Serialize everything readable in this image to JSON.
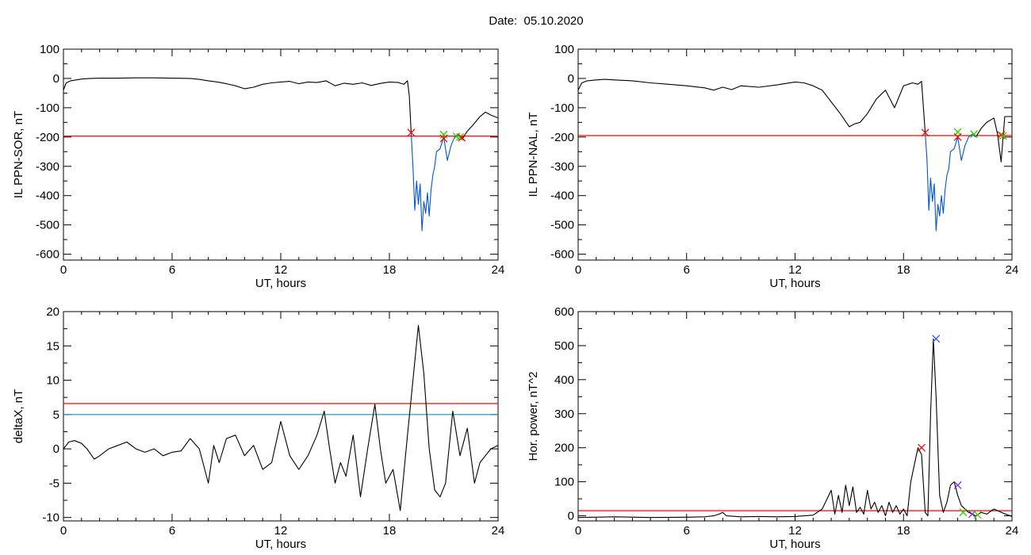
{
  "header": {
    "title": "Date:  05.10.2020"
  },
  "colors": {
    "threshold": "#ff0000",
    "threshold2": "#1e8fb4",
    "highlight": "#0055cc",
    "marker_red": "#ff0000",
    "marker_green": "#33cc00",
    "marker_blue": "#2255ff",
    "marker_purple": "#7733cc"
  },
  "chart_data": [
    {
      "type": "line",
      "xlabel": "UT, hours",
      "ylabel": "IL PPN-SOR, nT",
      "xlim": [
        0,
        24
      ],
      "ylim": [
        -620,
        100
      ],
      "xticks": [
        0,
        6,
        12,
        18,
        24
      ],
      "yticks": [
        -600,
        -500,
        -400,
        -300,
        -200,
        -100,
        0,
        100
      ],
      "threshold": {
        "y": -197,
        "color": "#ff0000"
      },
      "series": [
        {
          "color": "#000000",
          "x": [
            0,
            0.15,
            0.4,
            0.7,
            1.0,
            1.5,
            2,
            3,
            4,
            5,
            6,
            7,
            7.5,
            8,
            8.5,
            9,
            9.5,
            10,
            10.5,
            11,
            11.5,
            12,
            12.5,
            13,
            13.5,
            14,
            14.5,
            15,
            15.5,
            16,
            16.5,
            17,
            17.5,
            18,
            18.5,
            18.8,
            19.0,
            19.1,
            19.2
          ],
          "y": [
            -40,
            -15,
            -8,
            -5,
            -2,
            0,
            1,
            1,
            2,
            2,
            1,
            0,
            -3,
            -8,
            -12,
            -18,
            -25,
            -35,
            -30,
            -20,
            -15,
            -12,
            -10,
            -18,
            -12,
            -14,
            -8,
            -25,
            -16,
            -20,
            -15,
            -24,
            -17,
            -12,
            -14,
            -20,
            -8,
            -60,
            -185
          ]
        },
        {
          "color": "#0055cc",
          "x": [
            19.2,
            19.3,
            19.4,
            19.5,
            19.6,
            19.7,
            19.8,
            19.9,
            20.0,
            20.1,
            20.2,
            20.3,
            20.4,
            20.5,
            20.6,
            20.8,
            21.0,
            21.2,
            21.4,
            21.6,
            21.8,
            22.0
          ],
          "y": [
            -185,
            -300,
            -450,
            -350,
            -430,
            -360,
            -520,
            -420,
            -460,
            -390,
            -470,
            -380,
            -330,
            -300,
            -250,
            -240,
            -200,
            -280,
            -230,
            -200,
            -190,
            -210
          ]
        },
        {
          "color": "#000000",
          "x": [
            22.0,
            22.3,
            22.6,
            23.0,
            23.3,
            23.6,
            24.0
          ],
          "y": [
            -210,
            -180,
            -160,
            -130,
            -115,
            -125,
            -135
          ]
        }
      ],
      "markers": [
        {
          "x": 19.2,
          "y": -185,
          "color": "#ff0000"
        },
        {
          "x": 21.0,
          "y": -192,
          "color": "#33cc00"
        },
        {
          "x": 21.0,
          "y": -205,
          "color": "#ff0000"
        },
        {
          "x": 21.7,
          "y": -198,
          "color": "#33cc00"
        },
        {
          "x": 21.9,
          "y": -200,
          "color": "#33cc00"
        },
        {
          "x": 22.0,
          "y": -202,
          "color": "#ff0000"
        }
      ]
    },
    {
      "type": "line",
      "xlabel": "UT, hours",
      "ylabel": "IL PPN-NAL, nT",
      "xlim": [
        0,
        24
      ],
      "ylim": [
        -620,
        100
      ],
      "xticks": [
        0,
        6,
        12,
        18,
        24
      ],
      "yticks": [
        -600,
        -500,
        -400,
        -300,
        -200,
        -100,
        0,
        100
      ],
      "threshold": {
        "y": -195,
        "color": "#ff0000"
      },
      "series": [
        {
          "color": "#000000",
          "x": [
            0,
            0.2,
            0.5,
            1,
            1.5,
            2,
            3,
            4,
            5,
            6,
            7,
            7.5,
            8,
            8.5,
            9,
            10,
            11,
            12,
            12.5,
            13,
            13.5,
            14,
            14.5,
            15,
            15.3,
            15.6,
            16,
            16.5,
            17,
            17.5,
            18,
            18.5,
            18.8,
            19.0,
            19.2
          ],
          "y": [
            -40,
            -15,
            -8,
            -5,
            -3,
            -5,
            -8,
            -15,
            -20,
            -25,
            -32,
            -40,
            -30,
            -38,
            -25,
            -30,
            -22,
            -12,
            -15,
            -25,
            -40,
            -80,
            -120,
            -165,
            -155,
            -150,
            -120,
            -70,
            -40,
            -100,
            -25,
            -15,
            -20,
            -10,
            -185
          ]
        },
        {
          "color": "#0055cc",
          "x": [
            19.2,
            19.3,
            19.4,
            19.5,
            19.6,
            19.7,
            19.8,
            19.9,
            20.0,
            20.1,
            20.2,
            20.3,
            20.4,
            20.5,
            20.6,
            20.8,
            21.0,
            21.2,
            21.4,
            21.6,
            21.8,
            22.0
          ],
          "y": [
            -185,
            -280,
            -450,
            -340,
            -420,
            -360,
            -520,
            -430,
            -470,
            -400,
            -460,
            -380,
            -330,
            -310,
            -250,
            -240,
            -200,
            -280,
            -230,
            -200,
            -190,
            -200
          ]
        },
        {
          "color": "#000000",
          "x": [
            22.0,
            22.3,
            22.6,
            23.0,
            23.2,
            23.4,
            23.6,
            24.0
          ],
          "y": [
            -200,
            -170,
            -150,
            -135,
            -190,
            -285,
            -130,
            -130
          ]
        }
      ],
      "markers": [
        {
          "x": 19.2,
          "y": -185,
          "color": "#ff0000"
        },
        {
          "x": 21.0,
          "y": -183,
          "color": "#33cc00"
        },
        {
          "x": 21.0,
          "y": -200,
          "color": "#ff0000"
        },
        {
          "x": 21.9,
          "y": -190,
          "color": "#33cc00"
        },
        {
          "x": 23.4,
          "y": -193,
          "color": "#ff0000"
        },
        {
          "x": 23.5,
          "y": -196,
          "color": "#33cc00"
        }
      ]
    },
    {
      "type": "line",
      "xlabel": "UT, hours",
      "ylabel": "deltaX, nT",
      "xlim": [
        0,
        24
      ],
      "ylim": [
        -10.5,
        20
      ],
      "xticks": [
        0,
        6,
        12,
        18,
        24
      ],
      "yticks": [
        -10,
        -5,
        0,
        5,
        10,
        15,
        20
      ],
      "threshold": {
        "y": 6.6,
        "color": "#ff0000"
      },
      "threshold2": {
        "y": 5.0,
        "color": "#1e8fb4"
      },
      "series": [
        {
          "color": "#000000",
          "x": [
            0,
            0.3,
            0.6,
            1.0,
            1.3,
            1.7,
            2.0,
            2.5,
            3.0,
            3.5,
            4.0,
            4.5,
            5.0,
            5.5,
            6.0,
            6.5,
            7.0,
            7.5,
            8.0,
            8.3,
            8.6,
            9.0,
            9.5,
            10.0,
            10.5,
            11.0,
            11.5,
            12.0,
            12.5,
            13.0,
            13.5,
            14.0,
            14.4,
            14.7,
            15.0,
            15.3,
            15.6,
            16.0,
            16.4,
            16.8,
            17.2,
            17.5,
            17.8,
            18.2,
            18.6,
            19.0,
            19.3,
            19.6,
            19.9,
            20.2,
            20.5,
            20.8,
            21.1,
            21.5,
            21.9,
            22.3,
            22.7,
            23.0,
            23.3,
            23.6,
            24.0
          ],
          "y": [
            0,
            1,
            1.2,
            0.8,
            0,
            -1.5,
            -1,
            0,
            0.5,
            1,
            0,
            -0.5,
            0,
            -1,
            -0.5,
            -0.3,
            1.5,
            0,
            -5,
            0.5,
            -2,
            1.5,
            2,
            -1,
            0.5,
            -3,
            -2,
            4,
            -1,
            -3,
            -1,
            2,
            5.5,
            0,
            -5,
            -2,
            -4,
            2,
            -7,
            0,
            6.5,
            0,
            -5,
            -3,
            -9,
            2,
            10,
            18,
            11,
            0,
            -6,
            -7,
            -5,
            5.5,
            -1,
            3,
            -5,
            -2,
            -1,
            0,
            0.5
          ]
        }
      ],
      "markers": []
    },
    {
      "type": "line",
      "xlabel": "UT, hours",
      "ylabel": "Hor. power, nT^2",
      "xlim": [
        0,
        24
      ],
      "ylim": [
        -15,
        600
      ],
      "xticks": [
        0,
        6,
        12,
        18,
        24
      ],
      "yticks": [
        0,
        100,
        200,
        300,
        400,
        500,
        600
      ],
      "threshold": {
        "y": 15,
        "color": "#ff0000"
      },
      "series": [
        {
          "color": "#000000",
          "x": [
            0,
            2,
            4,
            6,
            7,
            7.5,
            7.8,
            8.0,
            8.2,
            9,
            10,
            11,
            12,
            12.5,
            13,
            13.5,
            14.0,
            14.2,
            14.4,
            14.6,
            14.8,
            15.0,
            15.2,
            15.4,
            15.6,
            15.8,
            16.0,
            16.2,
            16.4,
            16.6,
            16.8,
            17.0,
            17.2,
            17.4,
            17.6,
            17.8,
            18.0,
            18.2,
            18.4,
            18.6,
            18.8,
            19.0,
            19.2,
            19.35,
            19.5,
            19.65,
            19.8,
            20.0,
            20.2,
            20.4,
            20.6,
            20.8,
            21.0,
            21.2,
            21.4,
            21.6,
            21.8,
            22.0,
            22.3,
            22.6,
            23.0,
            23.5,
            24.0
          ],
          "y": [
            -5,
            -3,
            -5,
            -4,
            -3,
            0,
            5,
            10,
            0,
            -3,
            -2,
            -3,
            -2,
            0,
            2,
            20,
            75,
            5,
            60,
            10,
            90,
            30,
            85,
            10,
            25,
            5,
            75,
            20,
            40,
            10,
            30,
            0,
            40,
            10,
            30,
            5,
            20,
            0,
            100,
            150,
            200,
            180,
            10,
            0,
            300,
            520,
            350,
            60,
            10,
            40,
            90,
            100,
            60,
            30,
            20,
            10,
            5,
            0,
            10,
            5,
            20,
            8,
            -2
          ]
        }
      ],
      "markers": [
        {
          "x": 19.0,
          "y": 200,
          "color": "#ff0000"
        },
        {
          "x": 19.8,
          "y": 520,
          "color": "#2255ff"
        },
        {
          "x": 21.0,
          "y": 90,
          "color": "#7733cc"
        },
        {
          "x": 21.3,
          "y": 10,
          "color": "#33cc00"
        },
        {
          "x": 21.8,
          "y": 5,
          "color": "#7733cc"
        },
        {
          "x": 22.1,
          "y": 3,
          "color": "#33cc00"
        }
      ]
    }
  ]
}
